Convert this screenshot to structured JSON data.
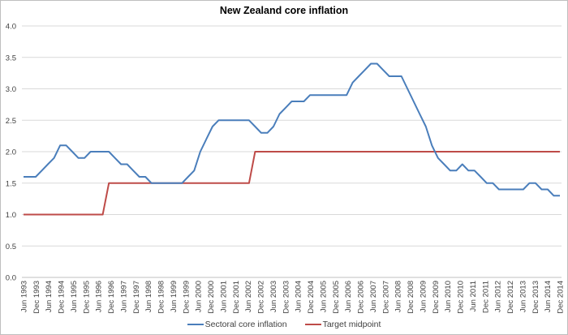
{
  "chart_data": {
    "type": "line",
    "title": "New Zealand core inflation",
    "xlabel": "",
    "ylabel": "",
    "ylim": [
      0,
      4
    ],
    "yticks": [
      "0.0",
      "0.5",
      "1.0",
      "1.5",
      "2.0",
      "2.5",
      "3.0",
      "3.5",
      "4.0"
    ],
    "grid": true,
    "legend_position": "bottom",
    "frequency": "quarterly",
    "x_tick_labels": [
      "Jun 1993",
      "Dec 1993",
      "Jun 1994",
      "Dec 1994",
      "Jun 1995",
      "Dec 1995",
      "Jun 1996",
      "Dec 1996",
      "Jun 1997",
      "Dec 1997",
      "Jun 1998",
      "Dec 1998",
      "Jun 1999",
      "Dec 1999",
      "Jun 2000",
      "Dec 2000",
      "Jun 2001",
      "Dec 2001",
      "Jun 2002",
      "Dec 2002",
      "Jun 2003",
      "Dec 2003",
      "Jun 2004",
      "Dec 2004",
      "Jun 2005",
      "Dec 2005",
      "Jun 2006",
      "Dec 2006",
      "Jun 2007",
      "Dec 2007",
      "Jun 2008",
      "Dec 2008",
      "Jun 2009",
      "Dec 2009",
      "Jun 2010",
      "Dec 2010",
      "Jun 2011",
      "Dec 2011",
      "Jun 2012",
      "Dec 2012",
      "Jun 2013",
      "Dec 2013",
      "Jun 2014",
      "Dec 2014"
    ],
    "series": [
      {
        "name": "Sectoral core inflation",
        "color": "#4a7ebb",
        "values": [
          1.6,
          1.6,
          1.6,
          1.7,
          1.8,
          1.9,
          2.1,
          2.1,
          2.0,
          1.9,
          1.9,
          2.0,
          2.0,
          2.0,
          2.0,
          1.9,
          1.8,
          1.8,
          1.7,
          1.6,
          1.6,
          1.5,
          1.5,
          1.5,
          1.5,
          1.5,
          1.5,
          1.6,
          1.7,
          2.0,
          2.2,
          2.4,
          2.5,
          2.5,
          2.5,
          2.5,
          2.5,
          2.5,
          2.4,
          2.3,
          2.3,
          2.4,
          2.6,
          2.7,
          2.8,
          2.8,
          2.8,
          2.9,
          2.9,
          2.9,
          2.9,
          2.9,
          2.9,
          2.9,
          3.1,
          3.2,
          3.3,
          3.4,
          3.4,
          3.3,
          3.2,
          3.2,
          3.2,
          3.0,
          2.8,
          2.6,
          2.4,
          2.1,
          1.9,
          1.8,
          1.7,
          1.7,
          1.8,
          1.7,
          1.7,
          1.6,
          1.5,
          1.5,
          1.4,
          1.4,
          1.4,
          1.4,
          1.4,
          1.5,
          1.5,
          1.4,
          1.4,
          1.3,
          1.3
        ]
      },
      {
        "name": "Target midpoint",
        "color": "#be4b48",
        "values": [
          1.0,
          1.0,
          1.0,
          1.0,
          1.0,
          1.0,
          1.0,
          1.0,
          1.0,
          1.0,
          1.0,
          1.0,
          1.0,
          1.0,
          1.5,
          1.5,
          1.5,
          1.5,
          1.5,
          1.5,
          1.5,
          1.5,
          1.5,
          1.5,
          1.5,
          1.5,
          1.5,
          1.5,
          1.5,
          1.5,
          1.5,
          1.5,
          1.5,
          1.5,
          1.5,
          1.5,
          1.5,
          1.5,
          2.0,
          2.0,
          2.0,
          2.0,
          2.0,
          2.0,
          2.0,
          2.0,
          2.0,
          2.0,
          2.0,
          2.0,
          2.0,
          2.0,
          2.0,
          2.0,
          2.0,
          2.0,
          2.0,
          2.0,
          2.0,
          2.0,
          2.0,
          2.0,
          2.0,
          2.0,
          2.0,
          2.0,
          2.0,
          2.0,
          2.0,
          2.0,
          2.0,
          2.0,
          2.0,
          2.0,
          2.0,
          2.0,
          2.0,
          2.0,
          2.0,
          2.0,
          2.0,
          2.0,
          2.0,
          2.0,
          2.0,
          2.0,
          2.0,
          2.0,
          2.0
        ]
      }
    ]
  },
  "legend": {
    "items": [
      {
        "label": "Sectoral core inflation",
        "color": "#4a7ebb"
      },
      {
        "label": "Target midpoint",
        "color": "#be4b48"
      }
    ]
  }
}
